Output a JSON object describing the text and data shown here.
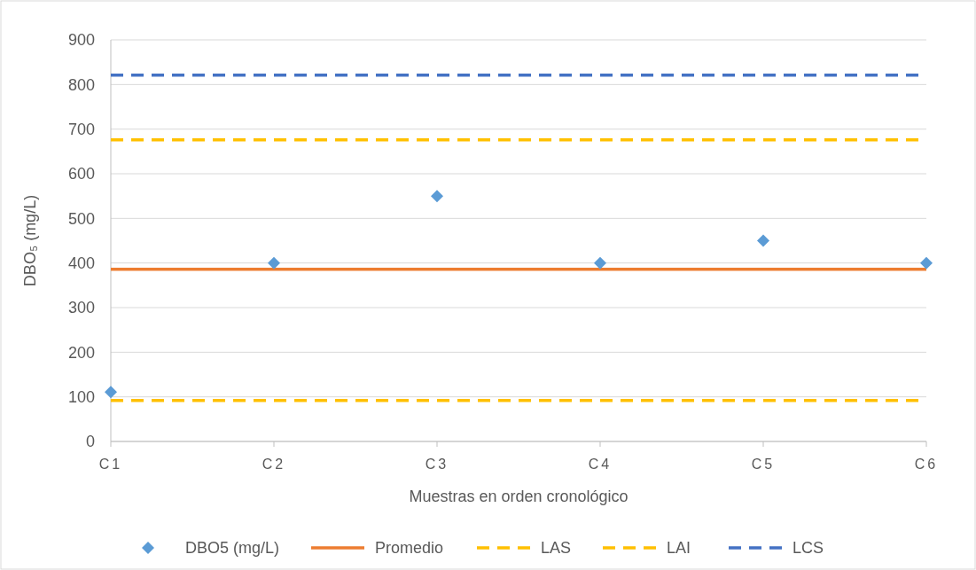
{
  "chart_data": {
    "type": "scatter",
    "xlabel": "Muestras en orden cronológico",
    "ylabel": "DBO₅ (mg/L)",
    "categories": [
      "C1",
      "C2",
      "C3",
      "C4",
      "C5",
      "C6"
    ],
    "series": [
      {
        "name": "DBO5 (mg/L)",
        "color": "#5b9bd5",
        "marker": "diamond",
        "values": [
          111,
          400,
          550,
          400,
          450,
          400
        ]
      },
      {
        "name": "Promedio",
        "type": "line",
        "color": "#ed7d31",
        "line_style": "solid",
        "values": [
          386,
          386,
          386,
          386,
          386,
          386
        ]
      },
      {
        "name": "LAS",
        "type": "line",
        "color": "#ffc000",
        "line_style": "dashed",
        "values": [
          676,
          676,
          676,
          676,
          676,
          676
        ]
      },
      {
        "name": "LAI",
        "type": "line",
        "color": "#ffc000",
        "line_style": "dashed",
        "values": [
          92,
          92,
          92,
          92,
          92,
          92
        ]
      },
      {
        "name": "LCS",
        "type": "line",
        "color": "#4472c4",
        "line_style": "dashed",
        "values": [
          821,
          821,
          821,
          821,
          821,
          821
        ]
      }
    ],
    "ylim": [
      0,
      900
    ],
    "yticks": [
      0,
      100,
      200,
      300,
      400,
      500,
      600,
      700,
      800,
      900
    ],
    "grid": "y",
    "legend": "bottom"
  }
}
